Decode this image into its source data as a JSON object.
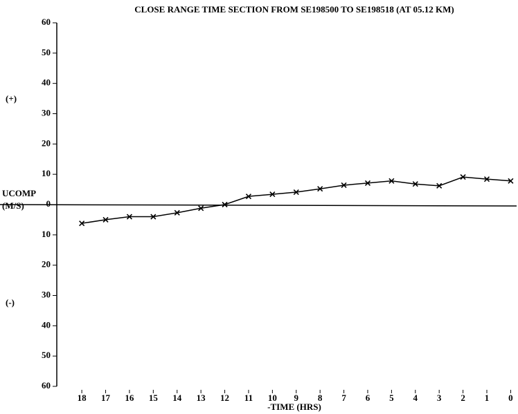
{
  "chart_data": {
    "type": "line",
    "title": "CLOSE RANGE TIME SECTION FROM SE198500 TO SE198518 (AT 05.12 KM)",
    "ylabel": [
      "UCOMP",
      "(M/S)"
    ],
    "xlabel": "-TIME (HRS)",
    "annotations": [
      "(+)",
      "(-)"
    ],
    "x": [
      18,
      17,
      16,
      15,
      14,
      13,
      12,
      11,
      10,
      9,
      8,
      7,
      6,
      5,
      4,
      3,
      2,
      1,
      0
    ],
    "series": [
      {
        "name": "UCOMP",
        "color": "#000000",
        "values": [
          -6.2,
          -5,
          -4,
          -4,
          -2.7,
          -1.2,
          0,
          2.7,
          3.4,
          4.1,
          5.2,
          6.4,
          7.1,
          7.8,
          6.8,
          6.2,
          9.1,
          8.4,
          7.8
        ]
      }
    ],
    "xlim": [
      19.05,
      -0.25
    ],
    "xticks": [
      18,
      17,
      16,
      15,
      14,
      13,
      12,
      11,
      10,
      9,
      8,
      7,
      6,
      5,
      4,
      3,
      2,
      1,
      0
    ],
    "ylim": [
      -60,
      60
    ],
    "yticks": [
      60,
      50,
      40,
      30,
      20,
      10,
      0,
      {
        "value": -10,
        "label": "10"
      },
      {
        "value": -20,
        "label": "20"
      },
      {
        "value": -30,
        "label": "30"
      },
      {
        "value": -40,
        "label": "40"
      },
      {
        "value": -50,
        "label": "50"
      },
      {
        "value": -60,
        "label": "60"
      }
    ],
    "grid": false
  }
}
